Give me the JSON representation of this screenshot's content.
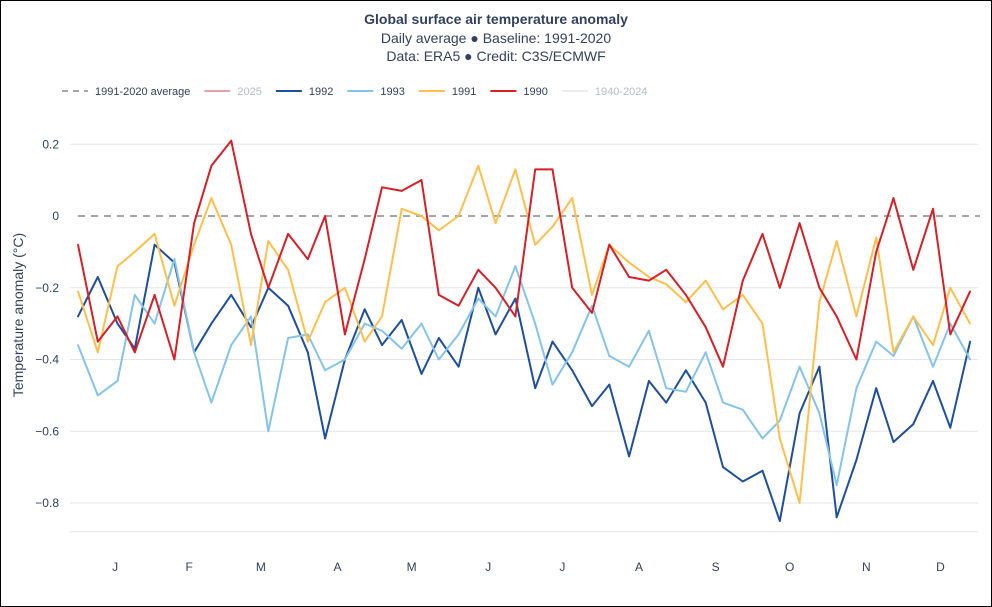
{
  "chart_data": {
    "type": "line",
    "title": "Global surface air temperature anomaly",
    "subtitles": [
      "Daily average ● Baseline: 1991-2020",
      "Data: ERA5 ● Credit: C3S/ECMWF"
    ],
    "xlabel": "",
    "ylabel": "Temperature anomaly (°C)",
    "ylim": [
      -0.93,
      0.3
    ],
    "xlim": [
      0,
      365
    ],
    "grid": true,
    "legend_position": "top-left",
    "x_ticks": [
      {
        "label": "J",
        "day": 15
      },
      {
        "label": "F",
        "day": 45
      },
      {
        "label": "M",
        "day": 74
      },
      {
        "label": "A",
        "day": 105
      },
      {
        "label": "M",
        "day": 135
      },
      {
        "label": "J",
        "day": 166
      },
      {
        "label": "J",
        "day": 196
      },
      {
        "label": "A",
        "day": 227
      },
      {
        "label": "S",
        "day": 258
      },
      {
        "label": "O",
        "day": 288
      },
      {
        "label": "N",
        "day": 319
      },
      {
        "label": "D",
        "day": 349
      }
    ],
    "y_ticks": [
      {
        "label": "0.2",
        "value": 0.2
      },
      {
        "label": "0",
        "value": 0
      },
      {
        "label": "−0.2",
        "value": -0.2
      },
      {
        "label": "−0.4",
        "value": -0.4
      },
      {
        "label": "−0.6",
        "value": -0.6
      },
      {
        "label": "−0.8",
        "value": -0.8
      }
    ],
    "legend": [
      {
        "name": "1991-2020 average",
        "color": "#a6a6a6",
        "dashed": true,
        "dimmed": false
      },
      {
        "name": "2025",
        "color": "#e3a3ae",
        "dashed": false,
        "dimmed": true
      },
      {
        "name": "1992",
        "color": "#1f4e9c",
        "dashed": false,
        "dimmed": false
      },
      {
        "name": "1993",
        "color": "#86c3ea",
        "dashed": false,
        "dimmed": false
      },
      {
        "name": "1991",
        "color": "#ffbf4d",
        "dashed": false,
        "dimmed": false
      },
      {
        "name": "1990",
        "color": "#d42027",
        "dashed": false,
        "dimmed": false
      },
      {
        "name": "1940-2024",
        "color": "#ececec",
        "dashed": false,
        "dimmed": true
      }
    ],
    "baseline": {
      "name": "1991-2020 average",
      "value": 0,
      "color": "#a6a6a6"
    },
    "x_day": [
      0,
      8,
      16,
      23,
      31,
      39,
      47,
      54,
      62,
      70,
      77,
      85,
      93,
      100,
      108,
      116,
      123,
      131,
      139,
      146,
      154,
      162,
      169,
      177,
      185,
      192,
      200,
      208,
      215,
      223,
      231,
      238,
      246,
      254,
      261,
      269,
      277,
      284,
      292,
      300,
      307,
      315,
      323,
      330,
      338,
      346,
      353,
      361
    ],
    "series": [
      {
        "name": "1992",
        "color": "#1f4e9c",
        "values": [
          -0.28,
          -0.17,
          -0.3,
          -0.37,
          -0.08,
          -0.13,
          -0.38,
          -0.3,
          -0.22,
          -0.31,
          -0.2,
          -0.25,
          -0.38,
          -0.62,
          -0.4,
          -0.26,
          -0.36,
          -0.29,
          -0.44,
          -0.34,
          -0.42,
          -0.2,
          -0.33,
          -0.23,
          -0.48,
          -0.35,
          -0.43,
          -0.53,
          -0.47,
          -0.67,
          -0.46,
          -0.52,
          -0.43,
          -0.52,
          -0.7,
          -0.74,
          -0.71,
          -0.85,
          -0.55,
          -0.42,
          -0.84,
          -0.68,
          -0.48,
          -0.63,
          -0.58,
          -0.46,
          -0.59,
          -0.35
        ]
      },
      {
        "name": "1993",
        "color": "#86c3ea",
        "values": [
          -0.36,
          -0.5,
          -0.46,
          -0.22,
          -0.3,
          -0.12,
          -0.38,
          -0.52,
          -0.36,
          -0.28,
          -0.6,
          -0.34,
          -0.33,
          -0.43,
          -0.4,
          -0.3,
          -0.32,
          -0.37,
          -0.3,
          -0.4,
          -0.33,
          -0.23,
          -0.28,
          -0.14,
          -0.3,
          -0.47,
          -0.38,
          -0.25,
          -0.39,
          -0.42,
          -0.32,
          -0.48,
          -0.49,
          -0.38,
          -0.52,
          -0.54,
          -0.62,
          -0.57,
          -0.42,
          -0.55,
          -0.75,
          -0.48,
          -0.35,
          -0.39,
          -0.28,
          -0.42,
          -0.3,
          -0.4
        ]
      },
      {
        "name": "1991",
        "color": "#ffbf4d",
        "values": [
          -0.21,
          -0.38,
          -0.14,
          -0.1,
          -0.05,
          -0.25,
          -0.08,
          0.05,
          -0.08,
          -0.36,
          -0.07,
          -0.15,
          -0.35,
          -0.24,
          -0.2,
          -0.35,
          -0.28,
          0.02,
          0.0,
          -0.04,
          0.0,
          0.14,
          -0.02,
          0.13,
          -0.08,
          -0.03,
          0.05,
          -0.22,
          -0.08,
          -0.13,
          -0.17,
          -0.19,
          -0.24,
          -0.18,
          -0.26,
          -0.22,
          -0.3,
          -0.62,
          -0.8,
          -0.24,
          -0.07,
          -0.28,
          -0.06,
          -0.38,
          -0.28,
          -0.36,
          -0.2,
          -0.3
        ]
      },
      {
        "name": "1990",
        "color": "#d42027",
        "values": [
          -0.08,
          -0.35,
          -0.28,
          -0.38,
          -0.22,
          -0.4,
          -0.02,
          0.14,
          0.21,
          -0.05,
          -0.2,
          -0.05,
          -0.12,
          0.0,
          -0.33,
          -0.12,
          0.08,
          0.07,
          0.1,
          -0.22,
          -0.25,
          -0.15,
          -0.2,
          -0.28,
          0.13,
          0.13,
          -0.2,
          -0.27,
          -0.08,
          -0.17,
          -0.18,
          -0.15,
          -0.22,
          -0.31,
          -0.42,
          -0.18,
          -0.05,
          -0.2,
          -0.02,
          -0.2,
          -0.28,
          -0.4,
          -0.1,
          0.05,
          -0.15,
          0.02,
          -0.33,
          -0.21
        ]
      }
    ]
  }
}
